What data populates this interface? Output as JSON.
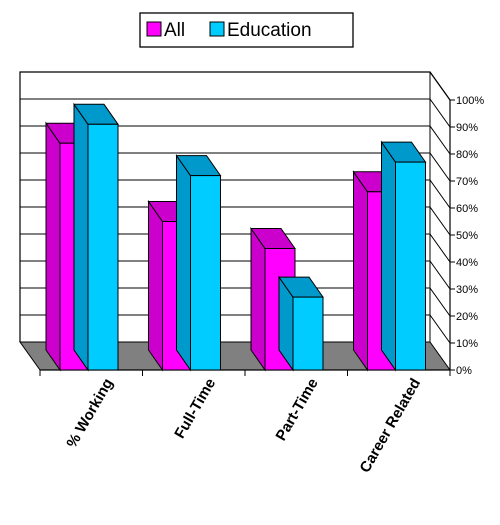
{
  "chart_data": {
    "type": "bar",
    "categories": [
      "% Working",
      "Full-Time",
      "Part-Time",
      "Career Related"
    ],
    "series": [
      {
        "name": "All",
        "values": [
          84,
          55,
          45,
          66
        ]
      },
      {
        "name": "Education",
        "values": [
          91,
          72,
          27,
          77
        ]
      }
    ],
    "ylim": [
      0,
      100
    ],
    "y_ticks": [
      "0%",
      "10%",
      "20%",
      "30%",
      "40%",
      "50%",
      "60%",
      "70%",
      "80%",
      "90%",
      "100%"
    ],
    "legend_position": "top-center",
    "grid": true,
    "style": "3d-clustered-column",
    "colors": {
      "All": {
        "front": "#ff00ff",
        "side": "#cc00cc",
        "top": "#cc00cc"
      },
      "Education": {
        "front": "#00ccff",
        "side": "#0099cc",
        "top": "#0099cc"
      },
      "floor": "#808080"
    }
  }
}
